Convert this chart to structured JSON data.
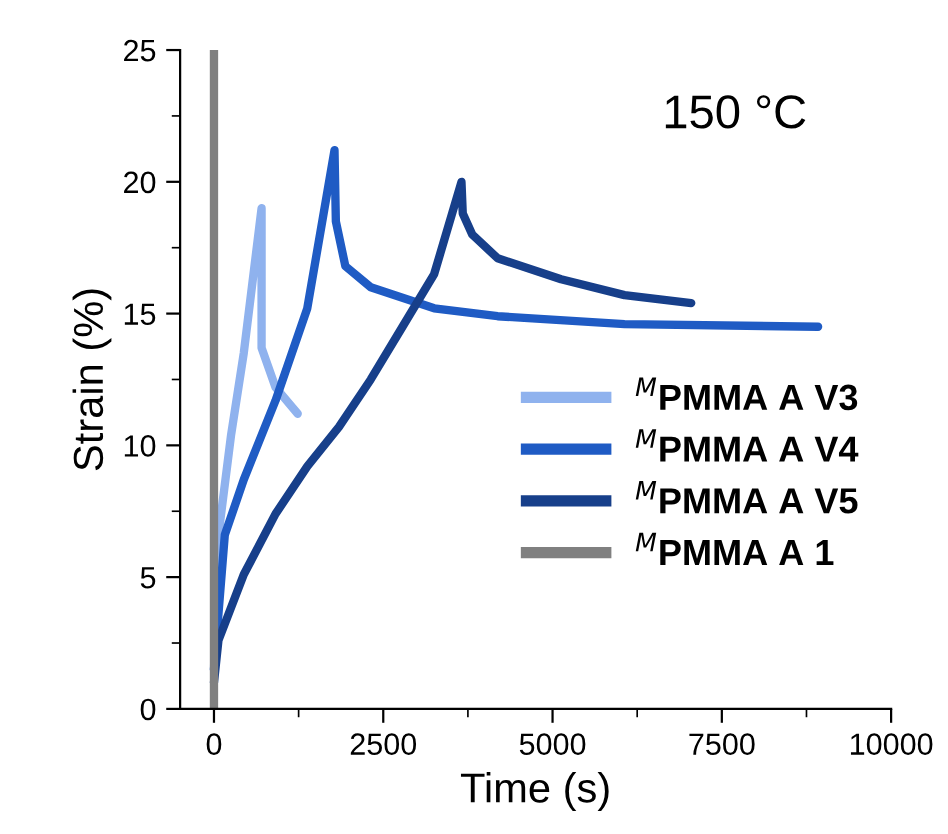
{
  "chart_data": {
    "type": "line",
    "xlabel": "Time (s)",
    "ylabel": "Strain (%)",
    "annotations": [
      "150 °C"
    ],
    "xlim": [
      -500,
      10000
    ],
    "xticks": [
      0,
      2500,
      5000,
      7500,
      10000
    ],
    "ylim": [
      0,
      25
    ],
    "yticks": [
      0,
      5,
      10,
      15,
      20,
      25
    ],
    "grid": false,
    "legend": "right",
    "marker": "none",
    "line_style": "solid",
    "series": [
      {
        "name": "$^{M}$PMMA A V3",
        "color": "#8fb2ee",
        "x": [
          0,
          66,
          253,
          440,
          703,
          703,
          909,
          1237
        ],
        "values": [
          1.5,
          6.6,
          10.4,
          13.5,
          19.0,
          13.7,
          12.2,
          11.2
        ]
      },
      {
        "name": "$^{M}$PMMA A V4",
        "color": "#1f5bc4",
        "x": [
          0,
          160,
          440,
          909,
          1378,
          1780,
          1800,
          1940,
          2315,
          3252,
          4189,
          6063,
          8922
        ],
        "values": [
          1.5,
          6.6,
          8.7,
          11.7,
          15.2,
          21.2,
          18.5,
          16.8,
          16.0,
          15.2,
          14.9,
          14.6,
          14.5
        ]
      },
      {
        "name": "$^{M}$PMMA A V5",
        "color": "#173f8a",
        "x": [
          0,
          66,
          440,
          909,
          1378,
          1846,
          2315,
          2784,
          3252,
          3655,
          3674,
          3814,
          4189,
          5126,
          6063,
          7048
        ],
        "values": [
          1.0,
          2.6,
          5.1,
          7.4,
          9.2,
          10.7,
          12.5,
          14.5,
          16.5,
          20.0,
          18.8,
          18.0,
          17.1,
          16.3,
          15.7,
          15.4
        ]
      },
      {
        "name": "$^{M}$PMMA A 1",
        "color": "#808080",
        "x": [
          0,
          0,
          0,
          0,
          0
        ],
        "values": [
          0,
          5,
          12.5,
          20,
          25
        ]
      }
    ]
  }
}
